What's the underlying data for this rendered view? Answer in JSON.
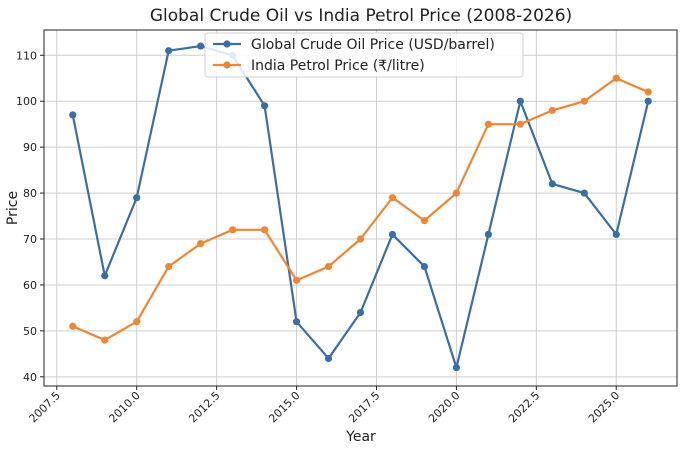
{
  "chart_data": {
    "type": "line",
    "title": "Global Crude Oil vs India Petrol Price (2008-2026)",
    "xlabel": "Year",
    "ylabel": "Price",
    "x": [
      2008,
      2009,
      2010,
      2011,
      2012,
      2013,
      2014,
      2015,
      2016,
      2017,
      2018,
      2019,
      2020,
      2021,
      2022,
      2023,
      2024,
      2025,
      2026
    ],
    "xlim": [
      2007.1,
      2026.9
    ],
    "ylim": [
      38,
      115.5
    ],
    "xticks": [
      2007.5,
      2010.0,
      2012.5,
      2015.0,
      2017.5,
      2020.0,
      2022.5,
      2025.0
    ],
    "xtick_labels": [
      "2007.5",
      "2010.0",
      "2012.5",
      "2015.0",
      "2017.5",
      "2020.0",
      "2022.5",
      "2025.0"
    ],
    "yticks": [
      40,
      50,
      60,
      70,
      80,
      90,
      100,
      110
    ],
    "ytick_labels": [
      "40",
      "50",
      "60",
      "70",
      "80",
      "90",
      "100",
      "110"
    ],
    "grid": true,
    "legend_position": "top-center",
    "series": [
      {
        "name": "Global Crude Oil Price (USD/barrel)",
        "color": "#3a6ea5",
        "values": [
          97,
          62,
          79,
          111,
          112,
          110,
          99,
          52,
          44,
          54,
          71,
          64,
          42,
          71,
          100,
          82,
          80,
          71,
          100
        ]
      },
      {
        "name": "India Petrol Price (₹/litre)",
        "color": "#ef8636",
        "values": [
          51,
          48,
          52,
          64,
          69,
          72,
          72,
          61,
          64,
          70,
          79,
          74,
          80,
          95,
          95,
          98,
          100,
          105,
          102
        ]
      }
    ]
  }
}
